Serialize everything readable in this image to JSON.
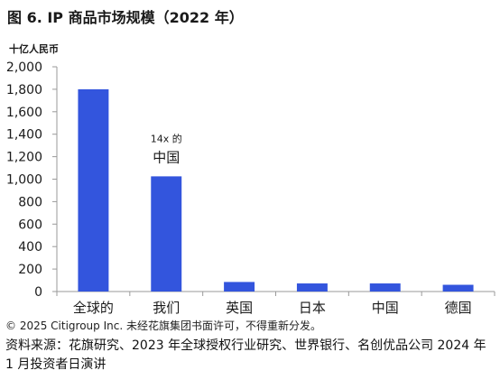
{
  "title": "图 6. IP 商品市场规模（2022 年）",
  "chart_data": {
    "type": "bar",
    "title": "图 6. IP 商品市场规模（2022 年）",
    "unit_label": "十亿人民币",
    "categories": [
      "全球的",
      "我们",
      "英国",
      "日本",
      "中国",
      "德国"
    ],
    "values": [
      1800,
      1025,
      85,
      72,
      72,
      60
    ],
    "ylim": [
      0,
      2000
    ],
    "yticks": [
      0,
      200,
      400,
      600,
      800,
      1000,
      1200,
      1400,
      1600,
      1800,
      2000
    ],
    "ytick_labels": [
      "0",
      "200",
      "400",
      "600",
      "800",
      "1,000",
      "1,200",
      "1,400",
      "1,600",
      "1,800",
      "2,000"
    ],
    "grid": false,
    "annotation": {
      "line1": "14x 的",
      "line2": "中国"
    },
    "bar_color": "#3355dd"
  },
  "footer": {
    "copyright": "© 2025 Citigroup Inc. 未经花旗集团书面许可，不得重新分发。",
    "sources": "资料来源：花旗研究、2023 年全球授权行业研究、世界银行、名创优品公司 2024 年 1 月投资者日演讲"
  }
}
